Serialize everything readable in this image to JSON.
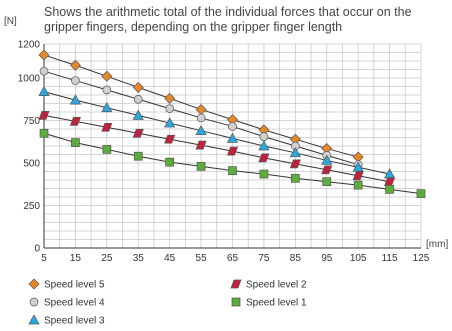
{
  "chart_data": {
    "type": "line",
    "title": "Shows the arithmetic total of the individual forces that occur on the gripper fingers, depending on the gripper finger length",
    "title_lines": [
      "Shows the arithmetic total of the individual forces that occur on the",
      "gripper fingers, depending on the gripper finger length"
    ],
    "ylabel": "[N]",
    "xlabel": "[mm]",
    "xlim": [
      5,
      125
    ],
    "ylim": [
      0,
      1200
    ],
    "xticks": [
      5,
      15,
      25,
      35,
      45,
      55,
      65,
      75,
      85,
      95,
      105,
      115,
      125
    ],
    "yticks": [
      0,
      250,
      500,
      750,
      1000,
      1200
    ],
    "grid": true,
    "legend_position": "bottom",
    "series": [
      {
        "name": "Speed level 5",
        "marker": "diamond",
        "color": "#e8862a",
        "x": [
          5,
          15,
          25,
          35,
          45,
          55,
          65,
          75,
          85,
          95,
          105
        ],
        "y": [
          1135,
          1075,
          1010,
          945,
          880,
          815,
          755,
          695,
          640,
          585,
          535
        ]
      },
      {
        "name": "Speed level 4",
        "marker": "circle",
        "color": "#d0d0d0",
        "x": [
          5,
          15,
          25,
          35,
          45,
          55,
          65,
          75,
          85,
          95,
          105
        ],
        "y": [
          1040,
          985,
          930,
          875,
          820,
          765,
          715,
          655,
          600,
          545,
          490
        ]
      },
      {
        "name": "Speed level 3",
        "marker": "triangle",
        "color": "#29a9e0",
        "x": [
          5,
          15,
          25,
          35,
          45,
          55,
          65,
          75,
          85,
          95,
          105,
          115
        ],
        "y": [
          920,
          870,
          825,
          780,
          735,
          690,
          645,
          600,
          560,
          515,
          475,
          435
        ]
      },
      {
        "name": "Speed level 2",
        "marker": "parallelogram",
        "color": "#c0213f",
        "x": [
          5,
          15,
          25,
          35,
          45,
          55,
          65,
          75,
          85,
          95,
          105,
          115
        ],
        "y": [
          780,
          745,
          710,
          675,
          640,
          605,
          570,
          530,
          495,
          460,
          425,
          390
        ]
      },
      {
        "name": "Speed level 1",
        "marker": "square",
        "color": "#5cad3a",
        "x": [
          5,
          15,
          25,
          35,
          45,
          55,
          65,
          75,
          85,
          95,
          105,
          115,
          125
        ],
        "y": [
          675,
          620,
          580,
          540,
          505,
          480,
          455,
          435,
          410,
          390,
          370,
          345,
          320
        ]
      }
    ]
  }
}
